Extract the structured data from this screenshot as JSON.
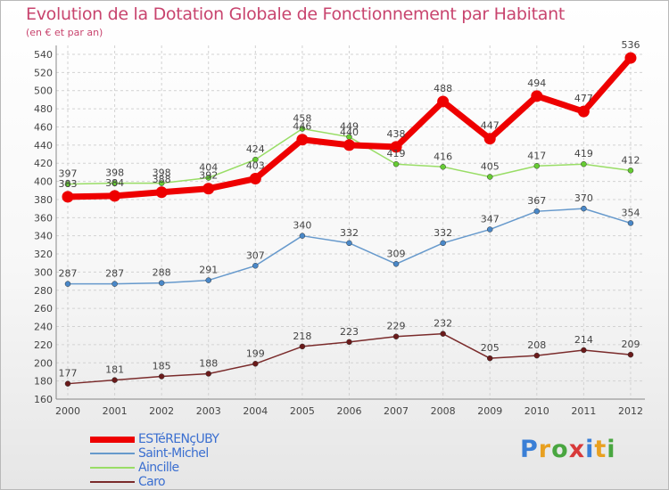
{
  "header": {
    "title": "Evolution de la Dotation Globale de Fonctionnement par Habitant",
    "subtitle": "(en € et par an)"
  },
  "logo": {
    "text": "Proxiti"
  },
  "chart_data": {
    "type": "line",
    "title": "Evolution de la Dotation Globale de Fonctionnement par Habitant",
    "subtitle": "(en € et par an)",
    "xlabel": "",
    "ylabel": "",
    "categories": [
      "2000",
      "2001",
      "2002",
      "2003",
      "2004",
      "2005",
      "2006",
      "2007",
      "2008",
      "2009",
      "2010",
      "2011",
      "2012"
    ],
    "ylim": [
      160,
      540
    ],
    "yticks": [
      160,
      180,
      200,
      220,
      240,
      260,
      280,
      300,
      320,
      340,
      360,
      380,
      400,
      420,
      440,
      460,
      480,
      500,
      520,
      540
    ],
    "grid": true,
    "legend_position": "bottom-left",
    "series": [
      {
        "name": "ESTéRENçUBY",
        "color": "#ee0000",
        "values": [
          383,
          384,
          388,
          392,
          403,
          446,
          440,
          438,
          488,
          447,
          494,
          477,
          536
        ]
      },
      {
        "name": "Saint-Michel",
        "color": "#6699cc",
        "values": [
          287,
          287,
          288,
          291,
          307,
          340,
          332,
          309,
          332,
          347,
          367,
          370,
          354
        ]
      },
      {
        "name": "Aincille",
        "color": "#99dd66",
        "values": [
          397,
          398,
          398,
          404,
          424,
          458,
          449,
          419,
          416,
          405,
          417,
          419,
          412
        ]
      },
      {
        "name": "Caro",
        "color": "#7a2b2b",
        "values": [
          177,
          181,
          185,
          188,
          199,
          218,
          223,
          229,
          232,
          205,
          208,
          214,
          209
        ]
      }
    ]
  }
}
